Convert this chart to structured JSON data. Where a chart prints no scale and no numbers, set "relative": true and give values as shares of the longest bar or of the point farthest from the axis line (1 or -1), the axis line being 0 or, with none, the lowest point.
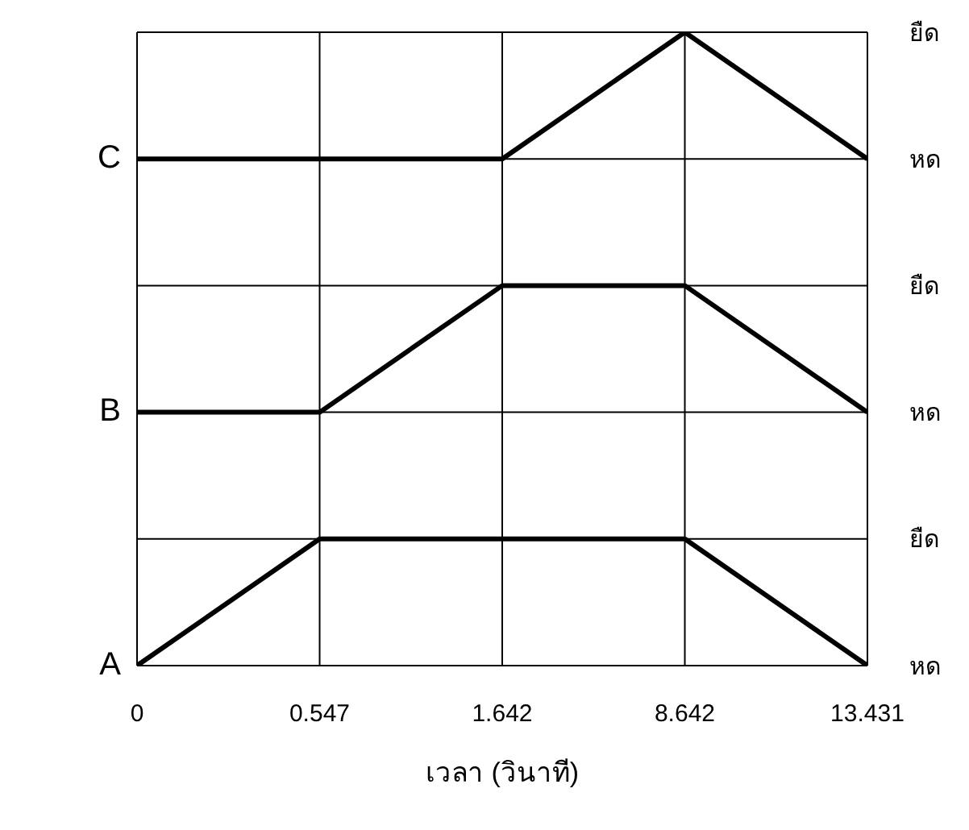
{
  "chart_data": {
    "type": "line",
    "categories": [
      "0",
      "0.547",
      "1.642",
      "8.642",
      "13.431"
    ],
    "xlabel": "เวลา (วินาที)",
    "relative": true,
    "series": [
      {
        "name": "A",
        "color": "#000000",
        "values": [
          0,
          0.2,
          0.2,
          0.2,
          0
        ]
      },
      {
        "name": "B",
        "color": "#000000",
        "values": [
          0.4,
          0.4,
          0.6,
          0.6,
          0.4
        ]
      },
      {
        "name": "C",
        "color": "#000000",
        "values": [
          0.8,
          0.8,
          0.8,
          1,
          0.8
        ]
      }
    ],
    "annotations": [
      "หด",
      "ยืด",
      "หด",
      "ยืด",
      "หด",
      "ยืด"
    ],
    "grid": true,
    "legend": false,
    "marker": "none",
    "line_style": "solid"
  }
}
